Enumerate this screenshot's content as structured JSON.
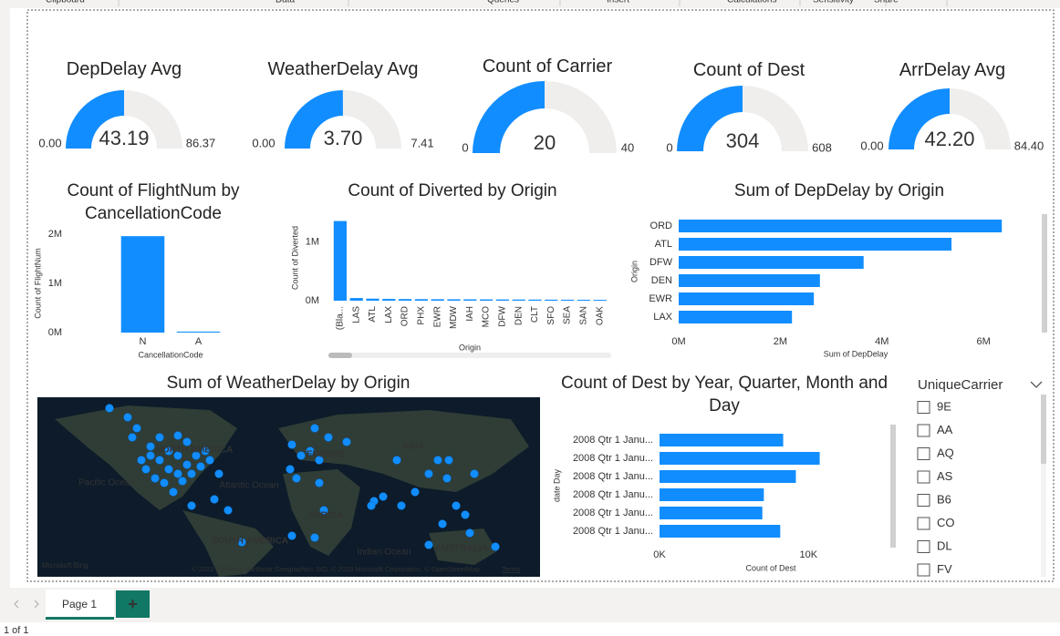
{
  "ribbon": {
    "groups": [
      "Clipboard",
      "Data",
      "Queries",
      "Insert",
      "Calculations",
      "Sensitivity",
      "Share"
    ]
  },
  "chart_data": [
    {
      "type": "gauge",
      "title": "DepDelay Avg",
      "values": [
        43.19
      ],
      "ylim": [
        0,
        86.37
      ],
      "yticks": [
        {
          "value": 0,
          "label": "0.00"
        },
        86.37
      ],
      "color": "#118dff"
    },
    {
      "type": "gauge",
      "title": "WeatherDelay Avg",
      "values": [
        3.7
      ],
      "value_labels": [
        "3.70"
      ],
      "ylim": [
        0,
        7.41
      ],
      "yticks": [
        {
          "value": 0,
          "label": "0.00"
        },
        7.41
      ],
      "color": "#118dff"
    },
    {
      "type": "gauge",
      "title": "Count of Carrier",
      "values": [
        20
      ],
      "ylim": [
        0,
        40
      ],
      "yticks": [
        0,
        40
      ],
      "color": "#118dff"
    },
    {
      "type": "gauge",
      "title": "Count of Dest",
      "values": [
        304
      ],
      "ylim": [
        0,
        608
      ],
      "yticks": [
        0,
        608
      ],
      "color": "#118dff"
    },
    {
      "type": "gauge",
      "title": "ArrDelay Avg",
      "values": [
        42.2
      ],
      "value_labels": [
        "42.20"
      ],
      "ylim": [
        0,
        84.4
      ],
      "yticks": [
        {
          "value": 0,
          "label": "0.00"
        },
        {
          "value": 84.4,
          "label": "84.40"
        }
      ],
      "color": "#118dff"
    },
    {
      "type": "bar",
      "title": "Count of FlightNum by CancellationCode",
      "x_label": "CancellationCode",
      "y_label": "Count of FlightNum",
      "categories": [
        "N",
        "A"
      ],
      "values": [
        1960000,
        20000
      ],
      "color": "#118dff",
      "ylim": [
        0,
        2000000
      ],
      "yticks": [
        {
          "value": 0,
          "label": "0M"
        },
        {
          "value": 1000000,
          "label": "1M"
        },
        {
          "value": 2000000,
          "label": "2M"
        }
      ]
    },
    {
      "type": "bar",
      "title": "Count of Diverted by Origin",
      "x_label": "Origin",
      "y_label": "Count of Diverted",
      "categories": [
        "(Bla...",
        "LAS",
        "ATL",
        "LAX",
        "ORD",
        "PHX",
        "EWR",
        "MDW",
        "IAH",
        "MCO",
        "DFW",
        "DEN",
        "CLT",
        "SFO",
        "SEA",
        "SAN",
        "OAK"
      ],
      "values": [
        1360000,
        45000,
        35000,
        30000,
        28000,
        26000,
        25000,
        24000,
        23000,
        22000,
        21000,
        20000,
        19000,
        18000,
        17000,
        16000,
        15000
      ],
      "color": "#118dff",
      "ylim": [
        0,
        1400000
      ],
      "yticks": [
        {
          "value": 0,
          "label": "0M"
        },
        {
          "value": 1000000,
          "label": "1M"
        }
      ]
    },
    {
      "type": "bar",
      "horizontal": true,
      "title": "Sum of DepDelay by Origin",
      "x_label": "Sum of DepDelay",
      "y_label": "Origin",
      "categories": [
        "ORD",
        "ATL",
        "DFW",
        "DEN",
        "EWR",
        "LAX"
      ],
      "values": [
        6360000,
        5370000,
        3640000,
        2780000,
        2660000,
        2230000
      ],
      "color": "#118dff",
      "xlim": [
        0,
        6500000
      ],
      "xticks": [
        {
          "value": 0,
          "label": "0M"
        },
        {
          "value": 2000000,
          "label": "2M"
        },
        {
          "value": 4000000,
          "label": "4M"
        },
        {
          "value": 6000000,
          "label": "6M"
        }
      ]
    },
    {
      "type": "bar",
      "horizontal": true,
      "title": "Count of Dest by Year, Quarter, Month and Day",
      "x_label": "Count of Dest",
      "y_label": "date Day",
      "categories": [
        "2008 Qtr 1 Janu...",
        "2008 Qtr 1 Janu...",
        "2008 Qtr 1 Janu...",
        "2008 Qtr 1 Janu...",
        "2008 Qtr 1 Janu...",
        "2008 Qtr 1 Janu..."
      ],
      "values": [
        8300,
        10750,
        9150,
        7000,
        6900,
        8100
      ],
      "color": "#118dff",
      "xlim": [
        0,
        12000
      ],
      "xticks": [
        {
          "value": 0,
          "label": "0K"
        },
        {
          "value": 10000,
          "label": "10K"
        }
      ]
    }
  ],
  "map": {
    "title": "Sum of WeatherDelay by Origin",
    "labels": [
      "NORTH AMERICA",
      "EUROPE",
      "ASIA",
      "Pacific Ocean",
      "Atlantic Ocean",
      "AFRICA",
      "SOUTH AMERICA",
      "Indian Ocean",
      "AUSTRALIA"
    ],
    "logo": "Microsoft Bing",
    "attribution": "© 2022 TomTom, Earthstar Geographics SIO, © 2023 Microsoft Corporation, © OpenStreetMap",
    "terms": "Terms"
  },
  "slicer": {
    "title": "UniqueCarrier",
    "items": [
      "9E",
      "AA",
      "AQ",
      "AS",
      "B6",
      "CO",
      "DL",
      "FV"
    ]
  },
  "tabs": {
    "pages": [
      "Page 1"
    ],
    "add": "+"
  },
  "status": "1 of 1"
}
